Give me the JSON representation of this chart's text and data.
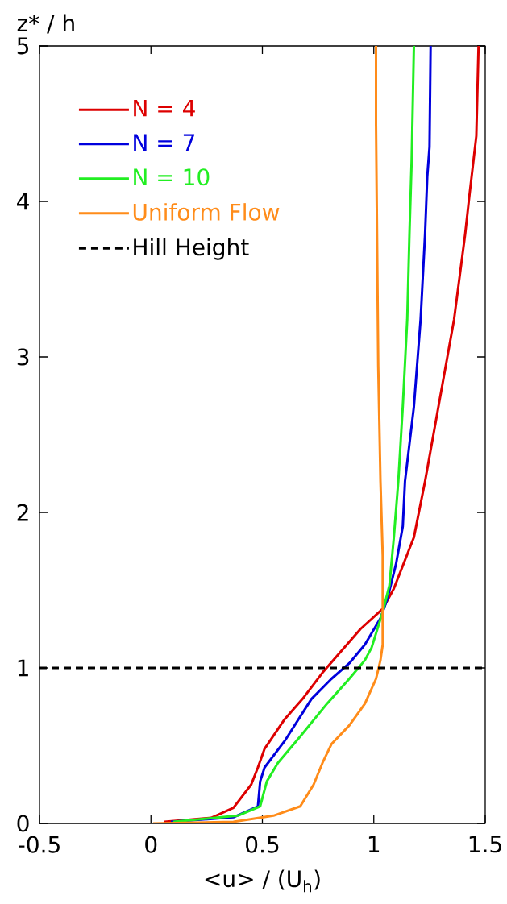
{
  "chart_data": {
    "type": "line",
    "xlabel": "<u> / (U$_{h}$)",
    "ylabel": "z* / h",
    "xlim": [
      -0.5,
      1.5
    ],
    "ylim": [
      0,
      5
    ],
    "xticks": [
      -0.5,
      0,
      0.5,
      1,
      1.5
    ],
    "yticks": [
      0,
      1,
      2,
      3,
      4,
      5
    ],
    "legend": "top left",
    "series": [
      {
        "name": "N = 4",
        "color": "#dd0000",
        "x": [
          0.06,
          0.27,
          0.37,
          0.45,
          0.48,
          0.51,
          0.6,
          0.68,
          0.77,
          0.94,
          1.04,
          1.09,
          1.18,
          1.23,
          1.29,
          1.36,
          1.41,
          1.43,
          1.46,
          1.47
        ],
        "values": [
          0.01,
          0.036,
          0.1,
          0.25,
          0.36,
          0.48,
          0.67,
          0.8,
          0.97,
          1.25,
          1.38,
          1.51,
          1.84,
          2.2,
          2.68,
          3.24,
          3.79,
          4.05,
          4.42,
          5.0
        ]
      },
      {
        "name": "N = 7",
        "color": "#0000dd",
        "x": [
          0.09,
          0.37,
          0.48,
          0.49,
          0.51,
          0.6,
          0.72,
          0.81,
          0.89,
          0.96,
          1.03,
          1.06,
          1.1,
          1.13,
          1.14,
          1.18,
          1.21,
          1.23,
          1.24,
          1.25,
          1.255
        ],
        "values": [
          0.01,
          0.04,
          0.11,
          0.27,
          0.36,
          0.53,
          0.8,
          0.93,
          1.03,
          1.15,
          1.32,
          1.44,
          1.67,
          1.91,
          2.2,
          2.68,
          3.24,
          3.79,
          4.16,
          4.35,
          5.0
        ]
      },
      {
        "name": "N = 10",
        "color": "#22ee22",
        "x": [
          0.1,
          0.39,
          0.49,
          0.52,
          0.57,
          0.67,
          0.79,
          0.89,
          0.96,
          0.99,
          1.04,
          1.07,
          1.09,
          1.11,
          1.13,
          1.15,
          1.16,
          1.17,
          1.18
        ],
        "values": [
          0.01,
          0.05,
          0.11,
          0.27,
          0.39,
          0.56,
          0.77,
          0.93,
          1.05,
          1.13,
          1.36,
          1.53,
          1.84,
          2.2,
          2.68,
          3.24,
          3.79,
          4.27,
          5.0
        ]
      },
      {
        "name": "Uniform Flow",
        "color": "#ff8c1a",
        "x": [
          0.01,
          0.37,
          0.55,
          0.67,
          0.73,
          0.77,
          0.81,
          0.89,
          0.96,
          1.01,
          1.03,
          1.04,
          1.04,
          1.03,
          1.02,
          1.01,
          1.01
        ],
        "values": [
          0.0,
          0.01,
          0.05,
          0.11,
          0.25,
          0.39,
          0.51,
          0.63,
          0.77,
          0.93,
          1.05,
          1.15,
          1.72,
          2.2,
          2.94,
          4.5,
          5.0
        ]
      }
    ],
    "ref_lines": [
      {
        "axis": "y",
        "value": 1,
        "label": "Hill Height",
        "color": "#000000",
        "line_style": "dashed"
      }
    ]
  }
}
